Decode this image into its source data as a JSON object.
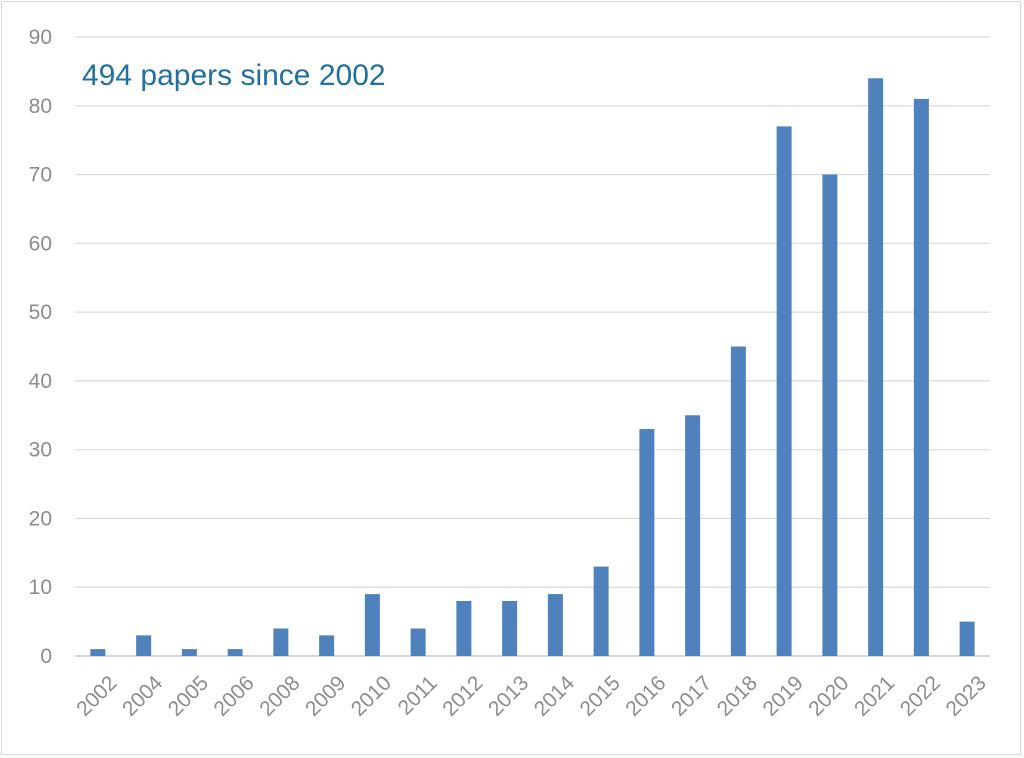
{
  "chart_data": {
    "type": "bar",
    "title": "",
    "xlabel": "",
    "ylabel": "",
    "annotation": "494 papers since 2002",
    "categories": [
      "2002",
      "2004",
      "2005",
      "2006",
      "2008",
      "2009",
      "2010",
      "2011",
      "2012",
      "2013",
      "2014",
      "2015",
      "2016",
      "2017",
      "2018",
      "2019",
      "2020",
      "2021",
      "2022",
      "2023"
    ],
    "values": [
      1,
      3,
      1,
      1,
      4,
      3,
      9,
      4,
      8,
      8,
      9,
      13,
      33,
      35,
      45,
      77,
      70,
      84,
      81,
      5
    ],
    "ylim": [
      0,
      90
    ],
    "yticks": [
      0,
      10,
      20,
      30,
      40,
      50,
      60,
      70,
      80,
      90
    ],
    "grid": true,
    "legend": "none",
    "bar_color": "#4f81bd",
    "annotation_color": "#1f6f9f"
  }
}
